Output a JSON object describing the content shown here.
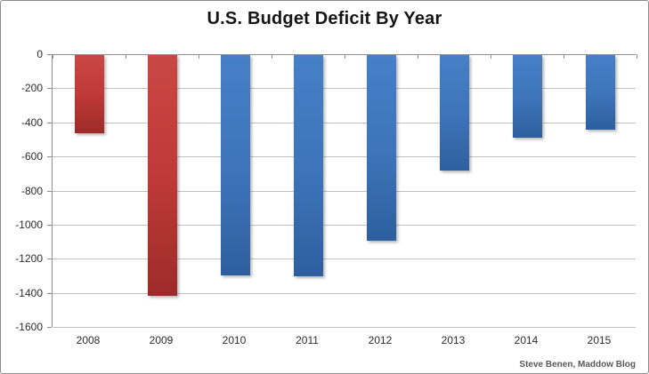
{
  "chart_data": {
    "type": "bar",
    "title": "U.S. Budget Deficit By Year",
    "categories": [
      "2008",
      "2009",
      "2010",
      "2011",
      "2012",
      "2013",
      "2014",
      "2015"
    ],
    "values": [
      -459,
      -1413,
      -1294,
      -1300,
      -1087,
      -680,
      -485,
      -439
    ],
    "series_colors": [
      "red",
      "red",
      "blue",
      "blue",
      "blue",
      "blue",
      "blue",
      "blue"
    ],
    "colors": {
      "red": "#be3937",
      "blue": "#3d74ba"
    },
    "xlabel": "",
    "ylabel": "",
    "ylim": [
      -1600,
      0
    ],
    "y_ticks": [
      0,
      -200,
      -400,
      -600,
      -800,
      -1000,
      -1200,
      -1400,
      -1600
    ],
    "grid": true,
    "legend": false,
    "baseline": "top"
  },
  "attribution": "Steve Benen, Maddow Blog"
}
